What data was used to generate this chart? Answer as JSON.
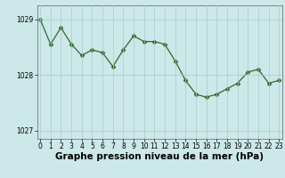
{
  "x": [
    0,
    1,
    2,
    3,
    4,
    5,
    6,
    7,
    8,
    9,
    10,
    11,
    12,
    13,
    14,
    15,
    16,
    17,
    18,
    19,
    20,
    21,
    22,
    23
  ],
  "y": [
    1029.0,
    1028.55,
    1028.85,
    1028.55,
    1028.35,
    1028.45,
    1028.4,
    1028.15,
    1028.45,
    1028.7,
    1028.6,
    1028.6,
    1028.55,
    1028.25,
    1027.9,
    1027.65,
    1027.6,
    1027.65,
    1027.75,
    1027.85,
    1028.05,
    1028.1,
    1027.85,
    1027.9
  ],
  "line_color": "#2d6a2d",
  "marker": "D",
  "marker_size": 2.5,
  "bg_color": "#cce8e8",
  "grid_color": "#aacccc",
  "xlabel": "Graphe pression niveau de la mer (hPa)",
  "xlabel_fontsize": 7.5,
  "ylim": [
    1026.85,
    1029.25
  ],
  "yticks": [
    1027,
    1028,
    1029
  ],
  "xticks": [
    0,
    1,
    2,
    3,
    4,
    5,
    6,
    7,
    8,
    9,
    10,
    11,
    12,
    13,
    14,
    15,
    16,
    17,
    18,
    19,
    20,
    21,
    22,
    23
  ],
  "tick_fontsize": 5.5,
  "axis_color": "#777777",
  "xlim_left": -0.3,
  "xlim_right": 23.3
}
